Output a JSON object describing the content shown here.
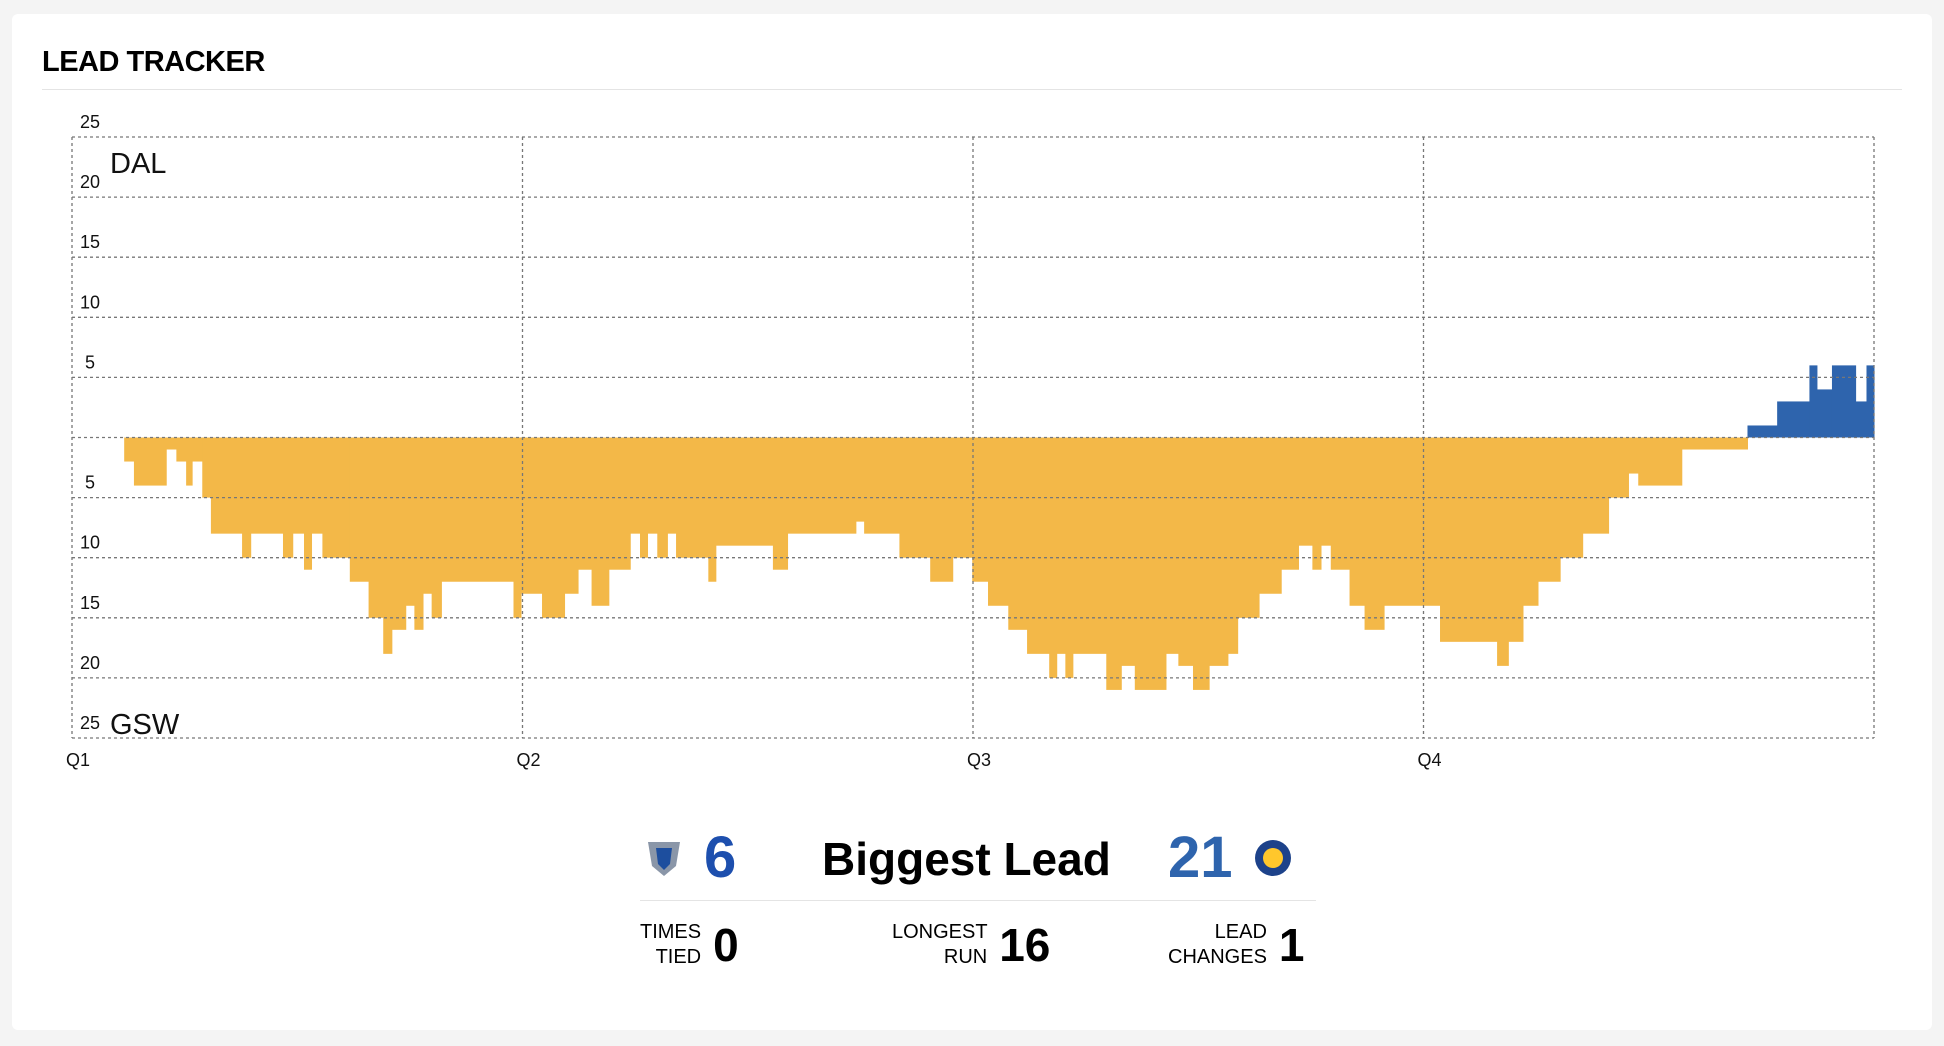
{
  "chart_data": {
    "type": "step-area",
    "title": "LEAD TRACKER",
    "annotations": {
      "top": "DAL",
      "bottom": "GSW"
    },
    "positive_color": "#2e64ad",
    "negative_color": "#f3b848",
    "grid": true,
    "xlim": [
      0,
      48
    ],
    "xticks": [
      {
        "value": 0,
        "label": "Q1"
      },
      {
        "value": 12,
        "label": "Q2"
      },
      {
        "value": 24,
        "label": "Q3"
      },
      {
        "value": 36,
        "label": "Q4"
      }
    ],
    "ylim": [
      -25,
      25
    ],
    "yticks": [
      {
        "value": -25,
        "label": "25"
      },
      {
        "value": -20,
        "label": "20"
      },
      {
        "value": -15,
        "label": "15"
      },
      {
        "value": -10,
        "label": "10"
      },
      {
        "value": -5,
        "label": "5"
      },
      {
        "value": 0,
        "label": ""
      },
      5,
      10,
      15,
      20,
      25
    ],
    "x": [
      0,
      1.39,
      1.65,
      2.51,
      2.78,
      3.04,
      3.2,
      3.47,
      3.7,
      4.53,
      4.76,
      5.62,
      5.88,
      6.18,
      6.38,
      6.67,
      7.4,
      7.9,
      8.29,
      8.52,
      8.89,
      9.12,
      9.35,
      9.58,
      9.84,
      11.76,
      11.96,
      12.52,
      13.12,
      13.48,
      13.84,
      14.3,
      14.87,
      15.13,
      15.33,
      15.59,
      15.86,
      16.09,
      16.95,
      17.15,
      18.67,
      19.06,
      20.88,
      21.1,
      22.04,
      22.86,
      23.46,
      23.98,
      24.4,
      24.94,
      25.44,
      26.03,
      26.23,
      26.46,
      26.66,
      27.55,
      27.95,
      28.31,
      29.14,
      29.47,
      29.86,
      30.29,
      30.79,
      31.05,
      31.62,
      32.21,
      32.67,
      33.04,
      33.27,
      33.53,
      34.03,
      34.43,
      34.95,
      36.44,
      37.96,
      38.26,
      38.65,
      39.05,
      39.64,
      40.24,
      40.93,
      41.46,
      41.72,
      42.88,
      44.63,
      45.42,
      46.28,
      46.48,
      46.88,
      47.51,
      47.8
    ],
    "series": [
      {
        "name": "Lead",
        "values": [
          0,
          -2,
          -4,
          -1,
          -2,
          -4,
          -2,
          -5,
          -8,
          -10,
          -8,
          -10,
          -8,
          -11,
          -8,
          -10,
          -12,
          -15,
          -18,
          -16,
          -14,
          -16,
          -13,
          -15,
          -12,
          -15,
          -13,
          -15,
          -13,
          -11,
          -14,
          -11,
          -8,
          -10,
          -8,
          -10,
          -8,
          -10,
          -12,
          -9,
          -11,
          -8,
          -7,
          -8,
          -10,
          -12,
          -10,
          -12,
          -14,
          -16,
          -18,
          -20,
          -18,
          -20,
          -18,
          -21,
          -19,
          -21,
          -18,
          -19,
          -21,
          -19,
          -18,
          -15,
          -13,
          -11,
          -9,
          -11,
          -9,
          -11,
          -14,
          -16,
          -14,
          -17,
          -19,
          -17,
          -14,
          -12,
          -10,
          -8,
          -5,
          -3,
          -4,
          -1,
          1,
          3,
          6,
          4,
          6,
          3,
          6
        ]
      }
    ]
  },
  "stats": {
    "biggest_lead": {
      "label": "Biggest Lead",
      "dal": 6,
      "gsw": 21
    },
    "times_tied": {
      "label": "TIMES TIED",
      "value": 0
    },
    "longest_run": {
      "label": "LONGEST RUN",
      "value": 16
    },
    "lead_changes": {
      "label": "LEAD CHANGES",
      "value": 1
    }
  }
}
